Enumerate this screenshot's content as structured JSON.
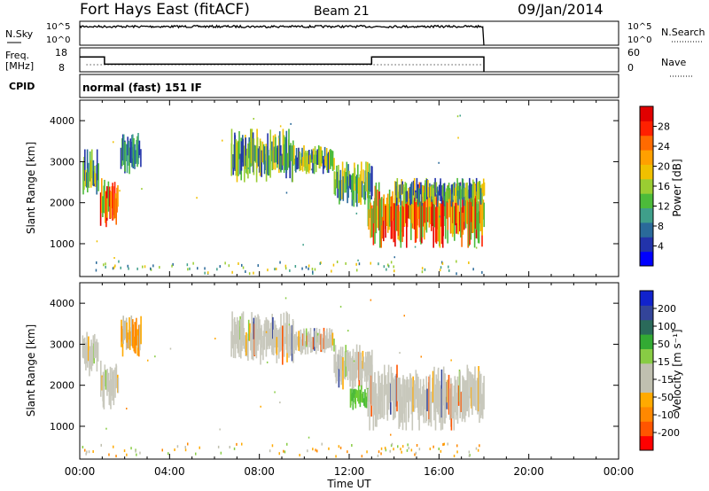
{
  "header": {
    "station": "Fort Hays East (fitACF)",
    "beam": "Beam 21",
    "date": "09/Jan/2014"
  },
  "params": {
    "nsky_label": "N.Sky",
    "nsearch_label": "N.Search",
    "freq_label_1": "Freq.",
    "freq_label_2": "[MHz]",
    "nave_label": "Nave",
    "cpid_label": "CPID",
    "cpid_text": "normal (fast) 151 IF",
    "noise_ticks_left": [
      "10^5",
      "10^0"
    ],
    "noise_ticks_right": [
      "10^5",
      "10^0"
    ],
    "freq_ticks": [
      "18",
      "8"
    ],
    "nave_ticks": [
      "60",
      "0"
    ],
    "freq_steps": [
      {
        "t0": 0.0,
        "t1": 1.1,
        "freq": 14.2
      },
      {
        "t0": 1.1,
        "t1": 13.0,
        "freq": 11.2
      },
      {
        "t0": 13.0,
        "t1": 18.0,
        "freq": 14.2
      }
    ],
    "noise_level": 0.78,
    "data_end_hour": 18.0
  },
  "chart_data": [
    {
      "type": "heatmap",
      "name": "power-panel",
      "ylabel": "Slant Range [km]",
      "ylim": [
        200,
        4500
      ],
      "xlim": [
        0,
        24
      ],
      "yticks": [
        "1000",
        "2000",
        "3000",
        "4000"
      ],
      "colorbar": {
        "label": "Power [dB]",
        "ticks": [
          "28",
          "24",
          "20",
          "16",
          "12",
          "8",
          "4"
        ],
        "colors": [
          "#0000ff",
          "#2233aa",
          "#2a6a9a",
          "#3f9f8a",
          "#4cbb3a",
          "#9acd32",
          "#f0c000",
          "#ffa000",
          "#ff6a00",
          "#ff2000",
          "#e00000"
        ]
      },
      "patches": [
        {
          "t0": 0.1,
          "t1": 0.8,
          "r0": 2200,
          "r1": 3300,
          "level": "mid"
        },
        {
          "t0": 0.9,
          "t1": 1.7,
          "r0": 1400,
          "r1": 2600,
          "level": "high"
        },
        {
          "t0": 1.8,
          "t1": 2.7,
          "r0": 2700,
          "r1": 3700,
          "level": "low"
        },
        {
          "t0": 6.7,
          "t1": 9.5,
          "r0": 2500,
          "r1": 3800,
          "level": "mid"
        },
        {
          "t0": 9.5,
          "t1": 11.3,
          "r0": 2700,
          "r1": 3400,
          "level": "mid"
        },
        {
          "t0": 11.3,
          "t1": 13.0,
          "r0": 1900,
          "r1": 3000,
          "level": "mid"
        },
        {
          "t0": 12.8,
          "t1": 18.0,
          "r0": 900,
          "r1": 2500,
          "level": "high"
        },
        {
          "t0": 14.0,
          "t1": 18.0,
          "r0": 1900,
          "r1": 2600,
          "level": "mid"
        }
      ]
    },
    {
      "type": "heatmap",
      "name": "velocity-panel",
      "ylabel": "Slant Range [km]",
      "xlabel": "Time UT",
      "ylim": [
        200,
        4500
      ],
      "xlim": [
        0,
        24
      ],
      "yticks": [
        "1000",
        "2000",
        "3000",
        "4000"
      ],
      "xticks": [
        "00:00",
        "04:00",
        "08:00",
        "12:00",
        "16:00",
        "20:00",
        "00:00"
      ],
      "colorbar": {
        "label": "Velocity [m s⁻¹]",
        "ticks": [
          "200",
          "100",
          "50",
          "15",
          "-15",
          "-50",
          "-100",
          "-200"
        ],
        "colors": [
          "#ff0000",
          "#ff5500",
          "#ff8800",
          "#ffaa00",
          "#c0c0b0",
          "#c0c0b0",
          "#88cc44",
          "#33aa33",
          "#2a6a5a",
          "#334499",
          "#1122cc"
        ]
      },
      "patches": [
        {
          "t0": 0.1,
          "t1": 0.8,
          "r0": 2200,
          "r1": 3300,
          "level": "gray"
        },
        {
          "t0": 0.9,
          "t1": 1.7,
          "r0": 1400,
          "r1": 2600,
          "level": "gray"
        },
        {
          "t0": 1.8,
          "t1": 2.7,
          "r0": 2700,
          "r1": 3700,
          "level": "orange"
        },
        {
          "t0": 6.7,
          "t1": 9.5,
          "r0": 2500,
          "r1": 3800,
          "level": "gray"
        },
        {
          "t0": 9.5,
          "t1": 11.3,
          "r0": 2700,
          "r1": 3400,
          "level": "gray"
        },
        {
          "t0": 11.3,
          "t1": 13.0,
          "r0": 1900,
          "r1": 3000,
          "level": "gray"
        },
        {
          "t0": 12.0,
          "t1": 12.9,
          "r0": 1400,
          "r1": 2000,
          "level": "green"
        },
        {
          "t0": 12.8,
          "t1": 18.0,
          "r0": 900,
          "r1": 2500,
          "level": "gray"
        }
      ]
    }
  ]
}
